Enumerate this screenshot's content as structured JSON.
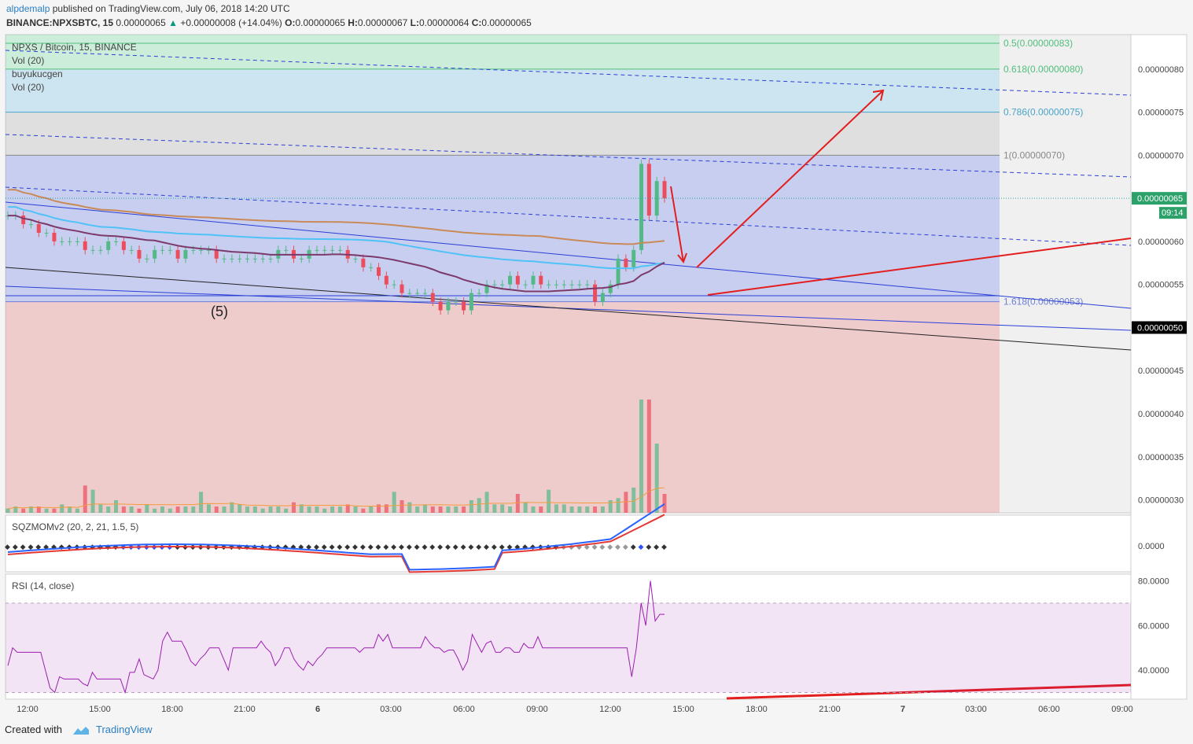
{
  "header": {
    "author": "alpdemalp",
    "published": "published on TradingView.com, July 06, 2018 14:20 UTC",
    "symbol": "BINANCE:NPXSBTC, 15",
    "last": "0.00000065",
    "change": "+0.00000008 (+14.04%)",
    "o_label": "O:",
    "o": "0.00000065",
    "h_label": "H:",
    "h": "0.00000067",
    "l_label": "L:",
    "l": "0.00000064",
    "c_label": "C:",
    "c": "0.00000065"
  },
  "legend": {
    "title": "NPXS / Bitcoin, 15, BINANCE",
    "items": [
      "Vol (20)",
      "buyukucgen",
      "Vol (20)"
    ]
  },
  "panes": {
    "sqz_label": "SQZMOMv2 (20, 2, 21, 1.5, 5)",
    "rsi_label": "RSI (14, close)"
  },
  "price_axis": {
    "ticks": [
      "0.00000080",
      "0.00000075",
      "0.00000070",
      "0.00000060",
      "0.00000055",
      "0.00000045",
      "0.00000040",
      "0.00000035",
      "0.00000030"
    ],
    "current_price": "0.00000065",
    "countdown": "09:14",
    "highlight_price": "0.00000050",
    "sqz_tick": "0.0000",
    "rsi_ticks": [
      "80.0000",
      "60.0000",
      "40.0000"
    ]
  },
  "fib": {
    "labels": [
      "0.5(0.00000083)",
      "0.618(0.00000080)",
      "0.786(0.00000075)",
      "1(0.00000070)",
      "1.618(0.00000053)"
    ]
  },
  "annotation": "(5)",
  "time_axis": [
    "12:00",
    "15:00",
    "18:00",
    "21:00",
    "6",
    "03:00",
    "06:00",
    "09:00",
    "12:00",
    "15:00",
    "18:00",
    "21:00",
    "7",
    "03:00",
    "06:00",
    "09:00"
  ],
  "footer": {
    "created": "Created with",
    "brand": "TradingView"
  },
  "colors": {
    "up": "#53b987",
    "down": "#eb4d5c",
    "ma_orange": "#c98a58",
    "ma_cyan": "#4fc3f7",
    "ma_purple": "#7b3a6b",
    "trend_red": "#e31e1e",
    "rsi_line": "#9b1fb0",
    "sqz_blue": "#2962ff",
    "sqz_red": "#e53935",
    "fib_green": "#4fbf7d",
    "fib_blue": "#4aa3c9",
    "fib_gray": "#888888",
    "fib_purple": "#6f7fd8"
  },
  "chart_data": {
    "type": "candlestick",
    "symbol": "NPXS / Bitcoin, 15, BINANCE",
    "x_labels": [
      "12:00",
      "15:00",
      "18:00",
      "21:00",
      "6",
      "03:00",
      "06:00",
      "09:00",
      "12:00",
      "15:00",
      "18:00",
      "21:00",
      "7",
      "03:00",
      "06:00",
      "09:00"
    ],
    "ylim": [
      2.85e-07,
      8.4e-07
    ],
    "fib_levels": [
      {
        "label": "0.5",
        "value": 8.3e-07
      },
      {
        "label": "0.618",
        "value": 8e-07
      },
      {
        "label": "0.786",
        "value": 7.5e-07
      },
      {
        "label": "1",
        "value": 7e-07
      },
      {
        "label": "1.618",
        "value": 5.3e-07
      }
    ],
    "close_series": [
      6.3e-07,
      6.3e-07,
      6.2e-07,
      6.2e-07,
      6.1e-07,
      6.1e-07,
      6e-07,
      6e-07,
      6e-07,
      6e-07,
      5.9e-07,
      5.9e-07,
      5.9e-07,
      6e-07,
      6e-07,
      5.9e-07,
      5.9e-07,
      5.8e-07,
      5.8e-07,
      5.9e-07,
      5.9e-07,
      5.9e-07,
      5.8e-07,
      5.9e-07,
      5.9e-07,
      5.9e-07,
      5.9e-07,
      5.8e-07,
      5.8e-07,
      5.8e-07,
      5.8e-07,
      5.8e-07,
      5.8e-07,
      5.8e-07,
      5.8e-07,
      5.9e-07,
      5.9e-07,
      5.8e-07,
      5.8e-07,
      5.9e-07,
      5.9e-07,
      5.9e-07,
      5.9e-07,
      5.9e-07,
      5.8e-07,
      5.8e-07,
      5.7e-07,
      5.7e-07,
      5.6e-07,
      5.5e-07,
      5.5e-07,
      5.4e-07,
      5.4e-07,
      5.4e-07,
      5.4e-07,
      5.3e-07,
      5.2e-07,
      5.3e-07,
      5.3e-07,
      5.2e-07,
      5.4e-07,
      5.4e-07,
      5.5e-07,
      5.5e-07,
      5.5e-07,
      5.6e-07,
      5.5e-07,
      5.5e-07,
      5.6e-07,
      5.5e-07,
      5.5e-07,
      5.5e-07,
      5.5e-07,
      5.5e-07,
      5.5e-07,
      5.5e-07,
      5.3e-07,
      5.4e-07,
      5.5e-07,
      5.8e-07,
      5.7e-07,
      5.9e-07,
      6.9e-07,
      6.3e-07,
      6.7e-07,
      6.5e-07
    ],
    "volume": [
      2,
      3,
      2,
      3,
      3,
      2,
      2,
      4,
      3,
      2,
      13,
      11,
      4,
      3,
      6,
      3,
      3,
      2,
      4,
      2,
      3,
      2,
      3,
      3,
      3,
      10,
      4,
      3,
      3,
      5,
      4,
      3,
      3,
      2,
      3,
      3,
      2,
      5,
      4,
      3,
      3,
      2,
      3,
      3,
      4,
      3,
      2,
      3,
      4,
      4,
      10,
      6,
      5,
      3,
      4,
      3,
      3,
      3,
      3,
      3,
      6,
      7,
      10,
      4,
      4,
      3,
      9,
      5,
      3,
      3,
      11,
      4,
      4,
      3,
      3,
      3,
      3,
      3,
      6,
      7,
      10,
      12,
      54,
      54,
      33,
      9
    ],
    "rsi": {
      "ylim": [
        27,
        83
      ],
      "bands": [
        70,
        30
      ],
      "values": [
        42,
        50,
        48,
        48,
        48,
        48,
        48,
        48,
        40,
        32,
        30,
        37,
        36,
        36,
        36,
        36,
        34,
        33,
        39,
        36,
        36,
        36,
        36,
        36,
        36,
        30,
        39,
        39,
        45,
        38,
        37,
        36,
        40,
        53,
        57,
        53,
        53,
        53,
        49,
        44,
        42,
        45,
        47,
        50,
        50,
        50,
        45,
        40,
        50,
        50,
        50,
        50,
        50,
        50,
        53,
        50,
        48,
        42,
        45,
        50,
        50,
        45,
        42,
        40,
        44,
        42,
        45,
        47,
        50,
        50,
        50,
        50,
        50,
        50,
        50,
        48,
        50,
        50,
        50,
        56,
        53,
        56,
        50,
        50,
        50,
        50,
        50,
        50,
        50,
        55,
        52,
        50,
        50,
        48,
        49,
        49,
        45,
        40,
        44,
        56,
        52,
        48,
        52,
        53,
        48,
        48,
        50,
        50,
        48,
        48,
        52,
        50,
        50,
        55,
        50,
        50,
        50,
        50,
        50,
        50,
        50,
        50,
        50,
        50,
        50,
        50,
        50,
        50,
        50,
        50,
        50,
        50,
        50,
        37,
        50,
        70,
        60,
        80,
        62,
        65,
        65
      ]
    }
  }
}
